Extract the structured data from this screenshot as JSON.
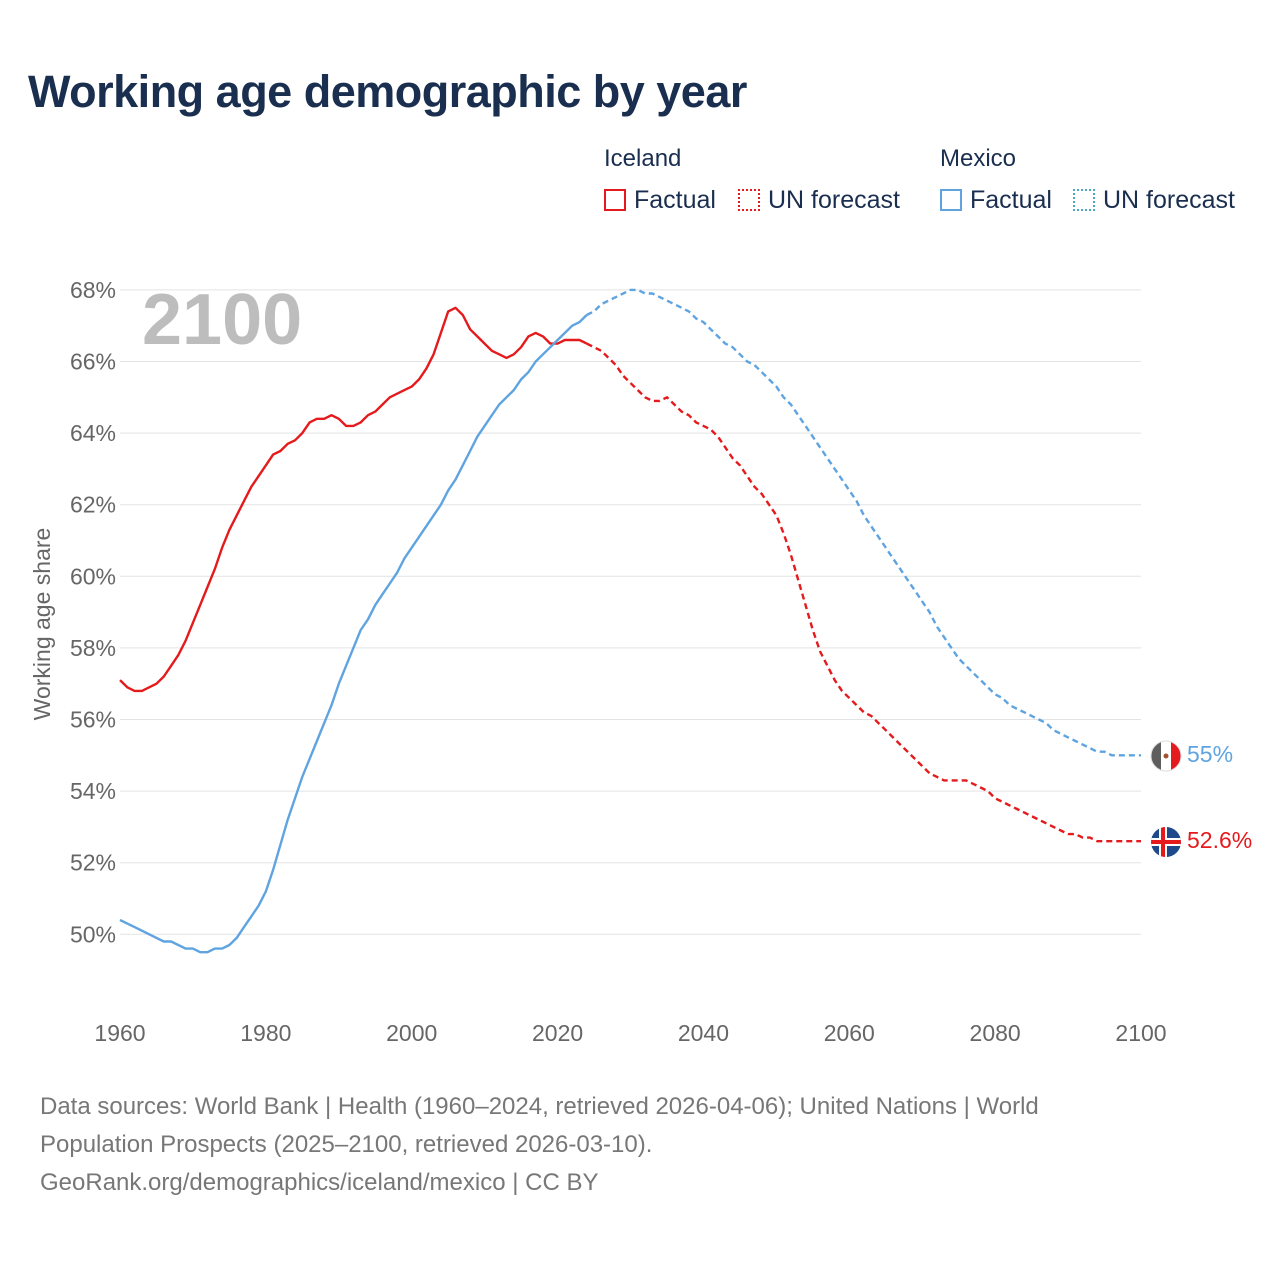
{
  "title": "Working age demographic by year",
  "legend": {
    "iceland_title": "Iceland",
    "mexico_title": "Mexico",
    "factual": "Factual",
    "forecast": "UN forecast"
  },
  "colors": {
    "iceland": "#e41a1c",
    "mexico": "#5fa4e0"
  },
  "footer": {
    "line1": "Data sources: World Bank | Health (1960–2024, retrieved 2026-04-06); United Nations | World",
    "line2": "Population Prospects (2025–2100, retrieved 2026-03-10).",
    "line3": "GeoRank.org/demographics/iceland/mexico | CC BY"
  },
  "chart_data": {
    "type": "line",
    "title": "Working age demographic by year",
    "ylabel": "Working age share",
    "xlabel": "",
    "watermark_year": "2100",
    "xlim": [
      1960,
      2100
    ],
    "ylim": [
      48.5,
      68.5
    ],
    "xticks": [
      1960,
      1980,
      2000,
      2020,
      2040,
      2060,
      2080,
      2100
    ],
    "yticks": [
      50,
      52,
      54,
      56,
      58,
      60,
      62,
      64,
      66,
      68
    ],
    "ytick_labels": [
      "50%",
      "52%",
      "54%",
      "56%",
      "58%",
      "60%",
      "62%",
      "64%",
      "66%",
      "68%"
    ],
    "factual_end_year": 2024,
    "series": [
      {
        "name": "Iceland",
        "color": "#e41a1c",
        "end_label": "52.6%",
        "points": [
          [
            1960,
            57.1
          ],
          [
            1961,
            56.9
          ],
          [
            1962,
            56.8
          ],
          [
            1963,
            56.8
          ],
          [
            1964,
            56.9
          ],
          [
            1965,
            57.0
          ],
          [
            1966,
            57.2
          ],
          [
            1967,
            57.5
          ],
          [
            1968,
            57.8
          ],
          [
            1969,
            58.2
          ],
          [
            1970,
            58.7
          ],
          [
            1971,
            59.2
          ],
          [
            1972,
            59.7
          ],
          [
            1973,
            60.2
          ],
          [
            1974,
            60.8
          ],
          [
            1975,
            61.3
          ],
          [
            1976,
            61.7
          ],
          [
            1977,
            62.1
          ],
          [
            1978,
            62.5
          ],
          [
            1979,
            62.8
          ],
          [
            1980,
            63.1
          ],
          [
            1981,
            63.4
          ],
          [
            1982,
            63.5
          ],
          [
            1983,
            63.7
          ],
          [
            1984,
            63.8
          ],
          [
            1985,
            64.0
          ],
          [
            1986,
            64.3
          ],
          [
            1987,
            64.4
          ],
          [
            1988,
            64.4
          ],
          [
            1989,
            64.5
          ],
          [
            1990,
            64.4
          ],
          [
            1991,
            64.2
          ],
          [
            1992,
            64.2
          ],
          [
            1993,
            64.3
          ],
          [
            1994,
            64.5
          ],
          [
            1995,
            64.6
          ],
          [
            1996,
            64.8
          ],
          [
            1997,
            65.0
          ],
          [
            1998,
            65.1
          ],
          [
            1999,
            65.2
          ],
          [
            2000,
            65.3
          ],
          [
            2001,
            65.5
          ],
          [
            2002,
            65.8
          ],
          [
            2003,
            66.2
          ],
          [
            2004,
            66.8
          ],
          [
            2005,
            67.4
          ],
          [
            2006,
            67.5
          ],
          [
            2007,
            67.3
          ],
          [
            2008,
            66.9
          ],
          [
            2009,
            66.7
          ],
          [
            2010,
            66.5
          ],
          [
            2011,
            66.3
          ],
          [
            2012,
            66.2
          ],
          [
            2013,
            66.1
          ],
          [
            2014,
            66.2
          ],
          [
            2015,
            66.4
          ],
          [
            2016,
            66.7
          ],
          [
            2017,
            66.8
          ],
          [
            2018,
            66.7
          ],
          [
            2019,
            66.5
          ],
          [
            2020,
            66.5
          ],
          [
            2021,
            66.6
          ],
          [
            2022,
            66.6
          ],
          [
            2023,
            66.6
          ],
          [
            2024,
            66.5
          ],
          [
            2025,
            66.4
          ],
          [
            2026,
            66.3
          ],
          [
            2027,
            66.1
          ],
          [
            2028,
            65.9
          ],
          [
            2029,
            65.6
          ],
          [
            2030,
            65.4
          ],
          [
            2031,
            65.2
          ],
          [
            2032,
            65.0
          ],
          [
            2033,
            64.9
          ],
          [
            2034,
            64.9
          ],
          [
            2035,
            65.0
          ],
          [
            2036,
            64.8
          ],
          [
            2037,
            64.6
          ],
          [
            2038,
            64.5
          ],
          [
            2039,
            64.3
          ],
          [
            2040,
            64.2
          ],
          [
            2041,
            64.1
          ],
          [
            2042,
            63.9
          ],
          [
            2043,
            63.6
          ],
          [
            2044,
            63.3
          ],
          [
            2045,
            63.1
          ],
          [
            2046,
            62.8
          ],
          [
            2047,
            62.5
          ],
          [
            2048,
            62.3
          ],
          [
            2049,
            62.0
          ],
          [
            2050,
            61.7
          ],
          [
            2051,
            61.2
          ],
          [
            2052,
            60.6
          ],
          [
            2053,
            59.9
          ],
          [
            2054,
            59.2
          ],
          [
            2055,
            58.5
          ],
          [
            2056,
            57.9
          ],
          [
            2057,
            57.5
          ],
          [
            2058,
            57.1
          ],
          [
            2059,
            56.8
          ],
          [
            2060,
            56.6
          ],
          [
            2061,
            56.4
          ],
          [
            2062,
            56.2
          ],
          [
            2063,
            56.1
          ],
          [
            2064,
            55.9
          ],
          [
            2065,
            55.7
          ],
          [
            2066,
            55.5
          ],
          [
            2067,
            55.3
          ],
          [
            2068,
            55.1
          ],
          [
            2069,
            54.9
          ],
          [
            2070,
            54.7
          ],
          [
            2071,
            54.5
          ],
          [
            2072,
            54.4
          ],
          [
            2073,
            54.3
          ],
          [
            2074,
            54.3
          ],
          [
            2075,
            54.3
          ],
          [
            2076,
            54.3
          ],
          [
            2077,
            54.2
          ],
          [
            2078,
            54.1
          ],
          [
            2079,
            54.0
          ],
          [
            2080,
            53.8
          ],
          [
            2081,
            53.7
          ],
          [
            2082,
            53.6
          ],
          [
            2083,
            53.5
          ],
          [
            2084,
            53.4
          ],
          [
            2085,
            53.3
          ],
          [
            2086,
            53.2
          ],
          [
            2087,
            53.1
          ],
          [
            2088,
            53.0
          ],
          [
            2089,
            52.9
          ],
          [
            2090,
            52.8
          ],
          [
            2091,
            52.8
          ],
          [
            2092,
            52.7
          ],
          [
            2093,
            52.7
          ],
          [
            2094,
            52.6
          ],
          [
            2095,
            52.6
          ],
          [
            2096,
            52.6
          ],
          [
            2097,
            52.6
          ],
          [
            2098,
            52.6
          ],
          [
            2099,
            52.6
          ],
          [
            2100,
            52.6
          ]
        ]
      },
      {
        "name": "Mexico",
        "color": "#5fa4e0",
        "end_label": "55%",
        "points": [
          [
            1960,
            50.4
          ],
          [
            1961,
            50.3
          ],
          [
            1962,
            50.2
          ],
          [
            1963,
            50.1
          ],
          [
            1964,
            50.0
          ],
          [
            1965,
            49.9
          ],
          [
            1966,
            49.8
          ],
          [
            1967,
            49.8
          ],
          [
            1968,
            49.7
          ],
          [
            1969,
            49.6
          ],
          [
            1970,
            49.6
          ],
          [
            1971,
            49.5
          ],
          [
            1972,
            49.5
          ],
          [
            1973,
            49.6
          ],
          [
            1974,
            49.6
          ],
          [
            1975,
            49.7
          ],
          [
            1976,
            49.9
          ],
          [
            1977,
            50.2
          ],
          [
            1978,
            50.5
          ],
          [
            1979,
            50.8
          ],
          [
            1980,
            51.2
          ],
          [
            1981,
            51.8
          ],
          [
            1982,
            52.5
          ],
          [
            1983,
            53.2
          ],
          [
            1984,
            53.8
          ],
          [
            1985,
            54.4
          ],
          [
            1986,
            54.9
          ],
          [
            1987,
            55.4
          ],
          [
            1988,
            55.9
          ],
          [
            1989,
            56.4
          ],
          [
            1990,
            57.0
          ],
          [
            1991,
            57.5
          ],
          [
            1992,
            58.0
          ],
          [
            1993,
            58.5
          ],
          [
            1994,
            58.8
          ],
          [
            1995,
            59.2
          ],
          [
            1996,
            59.5
          ],
          [
            1997,
            59.8
          ],
          [
            1998,
            60.1
          ],
          [
            1999,
            60.5
          ],
          [
            2000,
            60.8
          ],
          [
            2001,
            61.1
          ],
          [
            2002,
            61.4
          ],
          [
            2003,
            61.7
          ],
          [
            2004,
            62.0
          ],
          [
            2005,
            62.4
          ],
          [
            2006,
            62.7
          ],
          [
            2007,
            63.1
          ],
          [
            2008,
            63.5
          ],
          [
            2009,
            63.9
          ],
          [
            2010,
            64.2
          ],
          [
            2011,
            64.5
          ],
          [
            2012,
            64.8
          ],
          [
            2013,
            65.0
          ],
          [
            2014,
            65.2
          ],
          [
            2015,
            65.5
          ],
          [
            2016,
            65.7
          ],
          [
            2017,
            66.0
          ],
          [
            2018,
            66.2
          ],
          [
            2019,
            66.4
          ],
          [
            2020,
            66.6
          ],
          [
            2021,
            66.8
          ],
          [
            2022,
            67.0
          ],
          [
            2023,
            67.1
          ],
          [
            2024,
            67.3
          ],
          [
            2025,
            67.4
          ],
          [
            2026,
            67.6
          ],
          [
            2027,
            67.7
          ],
          [
            2028,
            67.8
          ],
          [
            2029,
            67.9
          ],
          [
            2030,
            68.0
          ],
          [
            2031,
            68.0
          ],
          [
            2032,
            67.9
          ],
          [
            2033,
            67.9
          ],
          [
            2034,
            67.8
          ],
          [
            2035,
            67.7
          ],
          [
            2036,
            67.6
          ],
          [
            2037,
            67.5
          ],
          [
            2038,
            67.4
          ],
          [
            2039,
            67.2
          ],
          [
            2040,
            67.1
          ],
          [
            2041,
            66.9
          ],
          [
            2042,
            66.7
          ],
          [
            2043,
            66.5
          ],
          [
            2044,
            66.4
          ],
          [
            2045,
            66.2
          ],
          [
            2046,
            66.0
          ],
          [
            2047,
            65.9
          ],
          [
            2048,
            65.7
          ],
          [
            2049,
            65.5
          ],
          [
            2050,
            65.3
          ],
          [
            2051,
            65.0
          ],
          [
            2052,
            64.8
          ],
          [
            2053,
            64.5
          ],
          [
            2054,
            64.2
          ],
          [
            2055,
            63.9
          ],
          [
            2056,
            63.6
          ],
          [
            2057,
            63.3
          ],
          [
            2058,
            63.0
          ],
          [
            2059,
            62.7
          ],
          [
            2060,
            62.4
          ],
          [
            2061,
            62.1
          ],
          [
            2062,
            61.7
          ],
          [
            2063,
            61.4
          ],
          [
            2064,
            61.1
          ],
          [
            2065,
            60.8
          ],
          [
            2066,
            60.5
          ],
          [
            2067,
            60.2
          ],
          [
            2068,
            59.9
          ],
          [
            2069,
            59.6
          ],
          [
            2070,
            59.3
          ],
          [
            2071,
            59.0
          ],
          [
            2072,
            58.6
          ],
          [
            2073,
            58.3
          ],
          [
            2074,
            58.0
          ],
          [
            2075,
            57.7
          ],
          [
            2076,
            57.5
          ],
          [
            2077,
            57.3
          ],
          [
            2078,
            57.1
          ],
          [
            2079,
            56.9
          ],
          [
            2080,
            56.7
          ],
          [
            2081,
            56.6
          ],
          [
            2082,
            56.4
          ],
          [
            2083,
            56.3
          ],
          [
            2084,
            56.2
          ],
          [
            2085,
            56.1
          ],
          [
            2086,
            56.0
          ],
          [
            2087,
            55.9
          ],
          [
            2088,
            55.7
          ],
          [
            2089,
            55.6
          ],
          [
            2090,
            55.5
          ],
          [
            2091,
            55.4
          ],
          [
            2092,
            55.3
          ],
          [
            2093,
            55.2
          ],
          [
            2094,
            55.1
          ],
          [
            2095,
            55.1
          ],
          [
            2096,
            55.0
          ],
          [
            2097,
            55.0
          ],
          [
            2098,
            55.0
          ],
          [
            2099,
            55.0
          ],
          [
            2100,
            55.0
          ]
        ]
      }
    ]
  }
}
